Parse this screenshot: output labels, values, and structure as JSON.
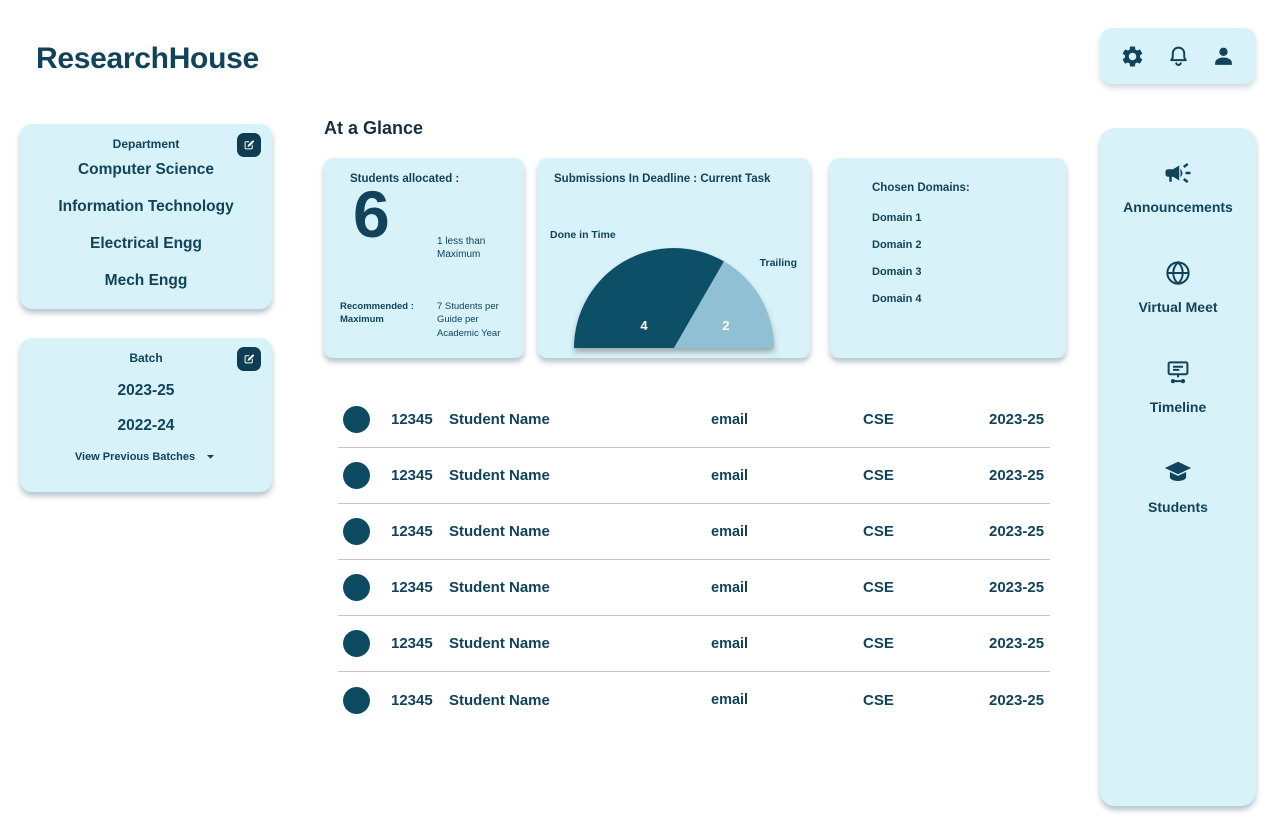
{
  "app": {
    "title": "ResearchHouse"
  },
  "header_actions": {
    "icons": [
      "settings",
      "notifications",
      "profile"
    ]
  },
  "department_card": {
    "title": "Department",
    "items": [
      "Computer Science",
      "Information Technology",
      "Electrical Engg",
      "Mech Engg"
    ]
  },
  "batch_card": {
    "title": "Batch",
    "items": [
      "2023-25",
      "2022-24"
    ],
    "footer_label": "View Previous Batches"
  },
  "glance": {
    "heading": "At a Glance",
    "allocated": {
      "title": "Students allocated :",
      "value": "6",
      "note": "1 less than Maximum",
      "recommended_label": "Recommended : Maximum",
      "recommended_note": "7 Students per Guide per Academic Year"
    },
    "submissions": {
      "title": "Submissions In Deadline : Current Task",
      "left_label": "Done in Time",
      "right_label": "Trailing",
      "chart_data": {
        "type": "gauge",
        "segments": [
          {
            "label": "Done in Time",
            "value": 4,
            "color": "#0d4f66"
          },
          {
            "label": "Trailing",
            "value": 2,
            "color": "#8fc0d3"
          }
        ],
        "total": 6
      }
    },
    "domains": {
      "title": "Chosen Domains:",
      "items": [
        "Domain 1",
        "Domain 2",
        "Domain 3",
        "Domain 4"
      ]
    }
  },
  "students_table": {
    "rows": [
      {
        "id": "12345",
        "name": "Student Name",
        "email": "email",
        "dept": "CSE",
        "batch": "2023-25"
      },
      {
        "id": "12345",
        "name": "Student Name",
        "email": "email",
        "dept": "CSE",
        "batch": "2023-25"
      },
      {
        "id": "12345",
        "name": "Student Name",
        "email": "email",
        "dept": "CSE",
        "batch": "2023-25"
      },
      {
        "id": "12345",
        "name": "Student Name",
        "email": "email",
        "dept": "CSE",
        "batch": "2023-25"
      },
      {
        "id": "12345",
        "name": "Student Name",
        "email": "email",
        "dept": "CSE",
        "batch": "2023-25"
      },
      {
        "id": "12345",
        "name": "Student Name",
        "email": "email",
        "dept": "CSE",
        "batch": "2023-25"
      }
    ]
  },
  "right_nav": {
    "items": [
      {
        "icon": "megaphone-icon",
        "label": "Announcements"
      },
      {
        "icon": "globe-icon",
        "label": "Virtual Meet"
      },
      {
        "icon": "timeline-icon",
        "label": "Timeline"
      },
      {
        "icon": "graduation-cap-icon",
        "label": "Students"
      }
    ]
  },
  "colors": {
    "ink": "#11435a",
    "card_bg": "#d8f2f9",
    "gauge_dark": "#0d4f66",
    "gauge_light": "#8fc0d3",
    "edit_button_bg": "#0e3c52",
    "avatar": "#0c4a61"
  }
}
